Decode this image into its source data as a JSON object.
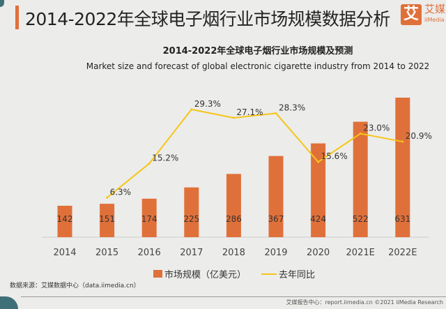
{
  "header": {
    "title": "2014-2022年全球电子烟行业市场规模数据分析",
    "logo_mark": "艾",
    "logo_name": "艾媒",
    "logo_sub": "iiMedia"
  },
  "chart_data": {
    "type": "bar",
    "title": "2014-2022年全球电子烟行业市场规模及预测",
    "subtitle": "Market size and forecast of global electronic cigarette industry from 2014 to 2022",
    "categories": [
      "2014",
      "2015",
      "2016",
      "2017",
      "2018",
      "2019",
      "2020",
      "2021E",
      "2022E"
    ],
    "series": [
      {
        "name": "市场规模（亿美元）",
        "type": "bar",
        "color": "#e0703a",
        "values": [
          142,
          151,
          174,
          225,
          286,
          367,
          424,
          522,
          631
        ]
      },
      {
        "name": "去年同比",
        "type": "line",
        "color": "#f5c518",
        "values": [
          null,
          6.3,
          15.2,
          29.3,
          27.1,
          28.3,
          15.6,
          23.0,
          20.9
        ],
        "labels": [
          "",
          "6.3%",
          "15.2%",
          "29.3%",
          "27.1%",
          "28.3%",
          "15.6%",
          "23.0%",
          "20.9%"
        ]
      }
    ],
    "grid": false,
    "legend": "bottom"
  },
  "source": "数据来源：艾媒数据中心（data.iimedia.cn）",
  "footer": "艾媒报告中心：report.iimedia.cn ©2021 iiMedia Research"
}
